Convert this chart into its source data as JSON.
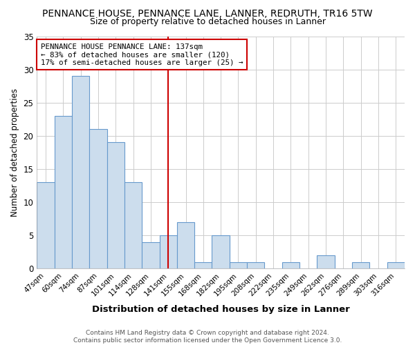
{
  "title": "PENNANCE HOUSE, PENNANCE LANE, LANNER, REDRUTH, TR16 5TW",
  "subtitle": "Size of property relative to detached houses in Lanner",
  "xlabel": "Distribution of detached houses by size in Lanner",
  "ylabel": "Number of detached properties",
  "categories": [
    "47sqm",
    "60sqm",
    "74sqm",
    "87sqm",
    "101sqm",
    "114sqm",
    "128sqm",
    "141sqm",
    "155sqm",
    "168sqm",
    "182sqm",
    "195sqm",
    "208sqm",
    "222sqm",
    "235sqm",
    "249sqm",
    "262sqm",
    "276sqm",
    "289sqm",
    "303sqm",
    "316sqm"
  ],
  "values": [
    13,
    23,
    29,
    21,
    19,
    13,
    4,
    5,
    7,
    1,
    5,
    1,
    1,
    0,
    1,
    0,
    2,
    0,
    1,
    0,
    1
  ],
  "bar_color": "#ccdded",
  "bar_edge_color": "#6699cc",
  "vline_x": 7,
  "vline_color": "#cc0000",
  "annotation_text": "PENNANCE HOUSE PENNANCE LANE: 137sqm\n← 83% of detached houses are smaller (120)\n17% of semi-detached houses are larger (25) →",
  "annotation_box_color": "#ffffff",
  "annotation_box_edge": "#cc0000",
  "ylim": [
    0,
    35
  ],
  "yticks": [
    0,
    5,
    10,
    15,
    20,
    25,
    30,
    35
  ],
  "plot_bg_color": "#ffffff",
  "fig_bg_color": "#ffffff",
  "grid_color": "#cccccc",
  "title_fontsize": 10,
  "subtitle_fontsize": 9,
  "footer_text": "Contains HM Land Registry data © Crown copyright and database right 2024.\nContains public sector information licensed under the Open Government Licence 3.0."
}
